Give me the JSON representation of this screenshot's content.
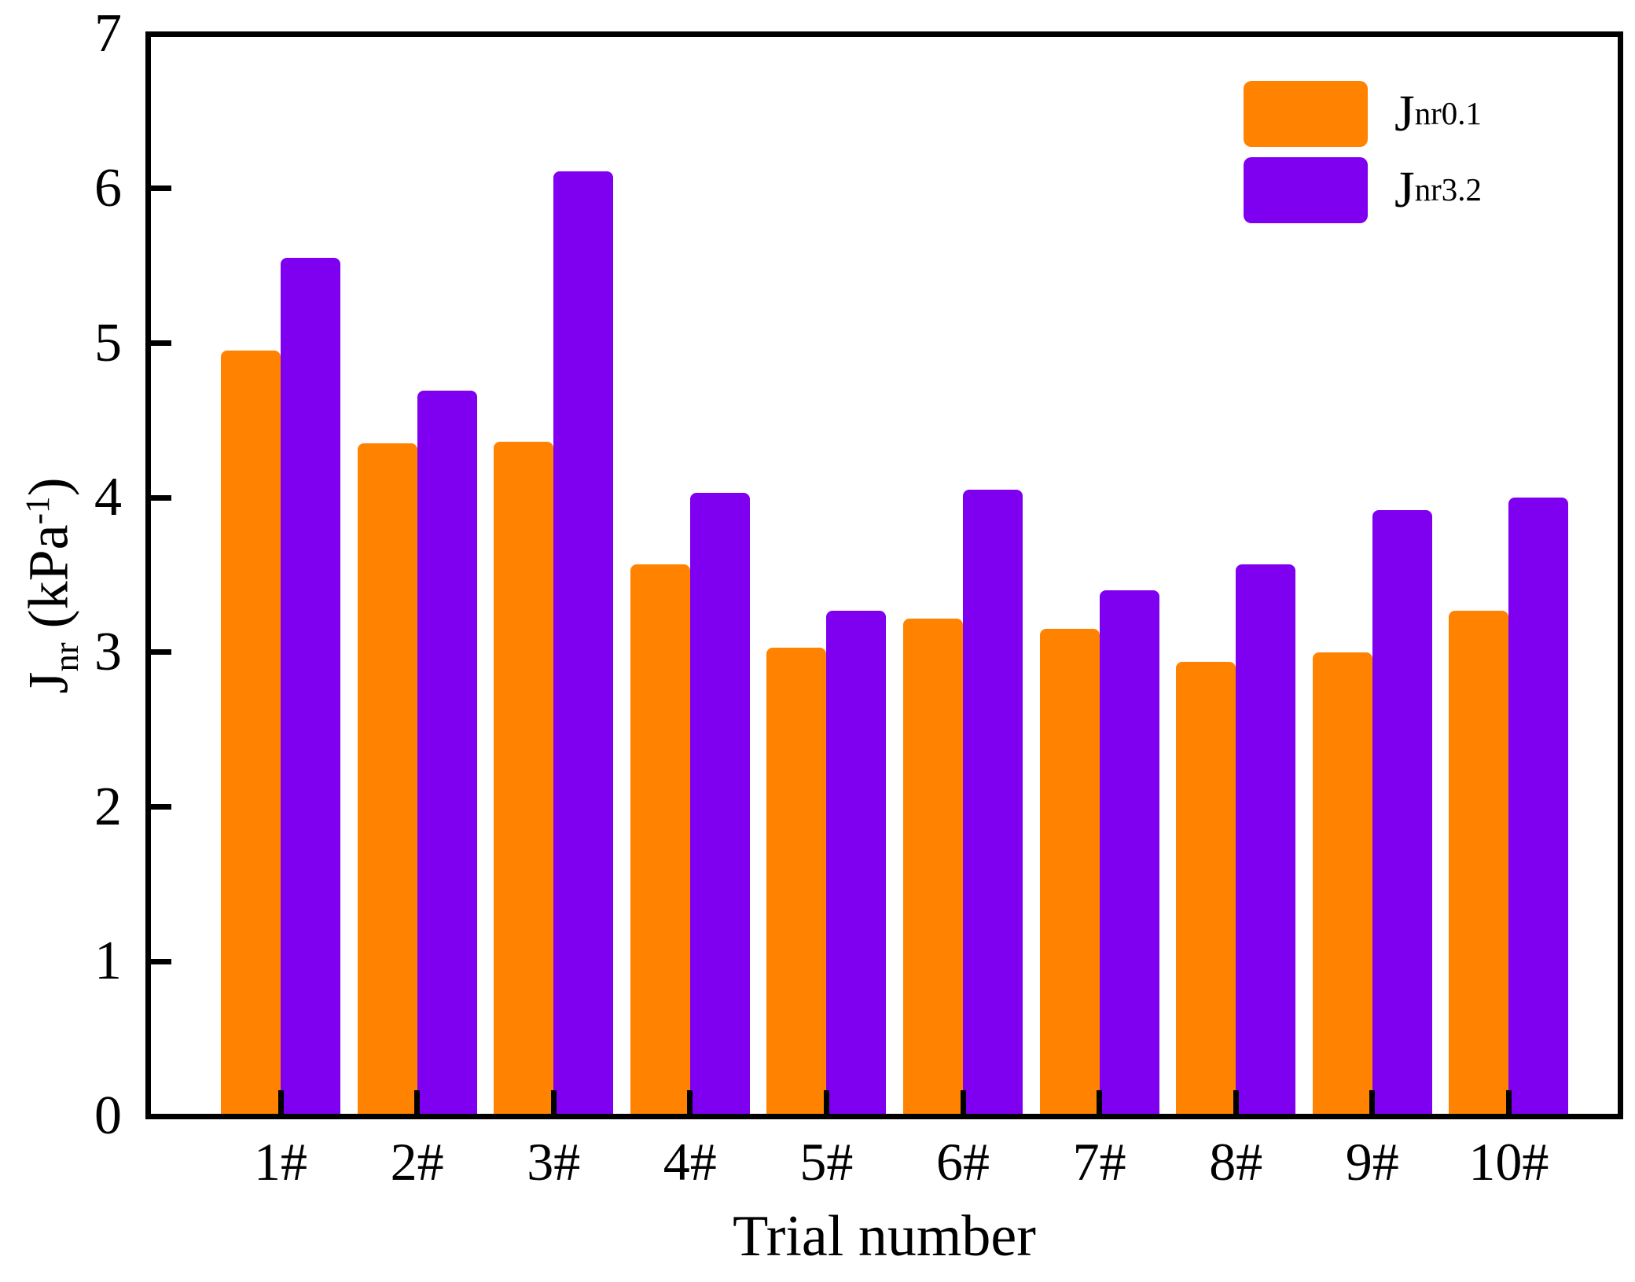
{
  "figure": {
    "x_axis_title": "Trial number",
    "y_axis_title": {
      "main": "J",
      "sub": "nr",
      "unit_open": " (kPa",
      "unit_sup": "-1",
      "unit_close": ")"
    }
  },
  "legend": [
    {
      "main": "J",
      "sub": "nr0.1",
      "color": "#FF8200"
    },
    {
      "main": "J",
      "sub": "nr3.2",
      "color": "#7F00F0"
    }
  ],
  "chart_data": {
    "type": "bar",
    "title": "",
    "xlabel": "Trial number",
    "ylabel": "Jnr (kPa-1)",
    "categories": [
      "1#",
      "2#",
      "3#",
      "4#",
      "5#",
      "6#",
      "7#",
      "8#",
      "9#",
      "10#"
    ],
    "series": [
      {
        "name": "Jnr0.1",
        "color": "#FF8200",
        "values": [
          4.95,
          4.35,
          4.36,
          3.57,
          3.03,
          3.22,
          3.15,
          2.94,
          3.0,
          3.27
        ]
      },
      {
        "name": "Jnr3.2",
        "color": "#7F00F0",
        "values": [
          5.55,
          4.69,
          6.11,
          4.03,
          3.27,
          4.05,
          3.4,
          3.57,
          3.92,
          4.0
        ]
      }
    ],
    "ylim": [
      0,
      7
    ],
    "yticks": [
      0,
      1,
      2,
      3,
      4,
      5,
      6,
      7
    ],
    "grid": false,
    "legend_position": "top-right"
  }
}
